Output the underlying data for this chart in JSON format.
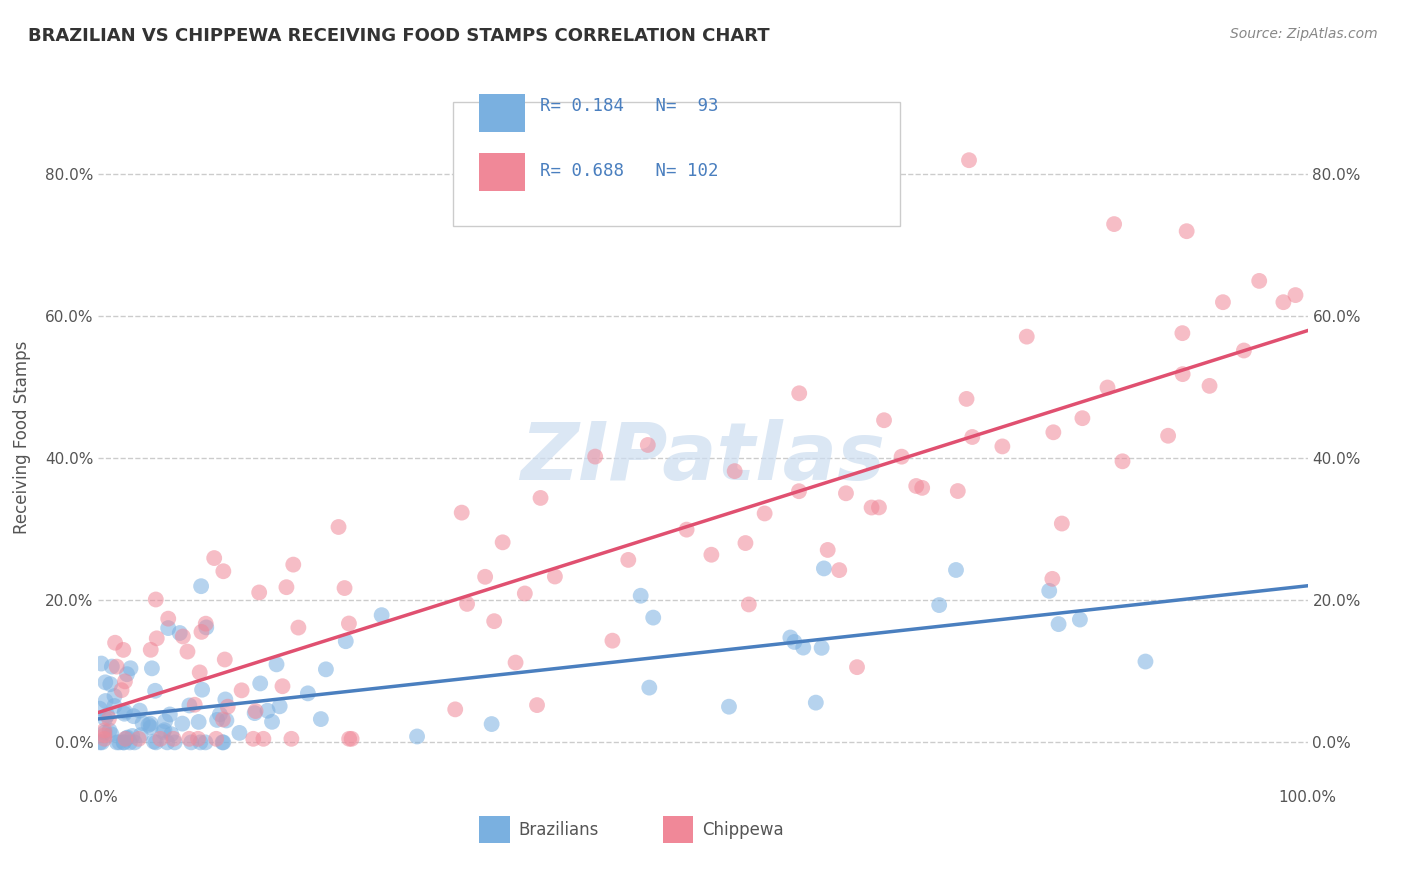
{
  "title": "BRAZILIAN VS CHIPPEWA RECEIVING FOOD STAMPS CORRELATION CHART",
  "source": "Source: ZipAtlas.com",
  "ylabel": "Receiving Food Stamps",
  "ytick_labels": [
    "0.0%",
    "20.0%",
    "40.0%",
    "60.0%",
    "80.0%"
  ],
  "ytick_values": [
    0.0,
    0.2,
    0.4,
    0.6,
    0.8
  ],
  "xlim": [
    0.0,
    1.0
  ],
  "ylim": [
    -0.06,
    0.92
  ],
  "series": [
    {
      "name": "Brazilians",
      "color": "#7ab0e0",
      "line_color": "#4a7fbf",
      "R": 0.184,
      "N": 93
    },
    {
      "name": "Chippewa",
      "color": "#f08898",
      "line_color": "#e05070",
      "R": 0.688,
      "N": 102
    }
  ],
  "legend_blue_color": "#7ab0e0",
  "legend_pink_color": "#f08898",
  "legend_text_color": "#4a7fbf",
  "watermark_color": "#ccddf0",
  "background_color": "#ffffff",
  "grid_color": "#cccccc",
  "title_color": "#333333",
  "source_color": "#888888"
}
